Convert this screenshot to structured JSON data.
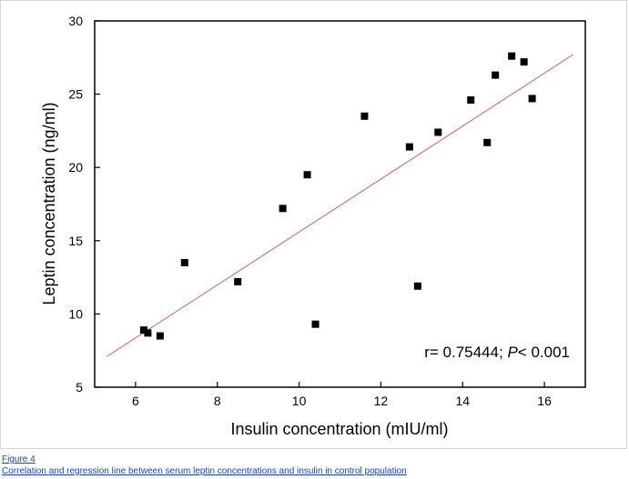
{
  "figure": {
    "label": "Figure 4",
    "caption": "Correlation and regression line between serum leptin concentrations and insulin in control population"
  },
  "chart_data": {
    "type": "scatter",
    "xlabel": "Insulin concentration (mIU/ml)",
    "ylabel": "Leptin concentration (ng/ml)",
    "xlim": [
      5,
      17
    ],
    "ylim": [
      5,
      30
    ],
    "xticks": [
      6,
      8,
      10,
      12,
      14,
      16
    ],
    "yticks": [
      5,
      10,
      15,
      20,
      25,
      30
    ],
    "grid": false,
    "legend": "none",
    "marker": "square",
    "marker_color": "#000000",
    "points": [
      {
        "x": 6.2,
        "y": 8.9
      },
      {
        "x": 6.3,
        "y": 8.7
      },
      {
        "x": 6.6,
        "y": 8.5
      },
      {
        "x": 7.2,
        "y": 13.5
      },
      {
        "x": 8.5,
        "y": 12.2
      },
      {
        "x": 9.6,
        "y": 17.2
      },
      {
        "x": 10.2,
        "y": 19.5
      },
      {
        "x": 10.4,
        "y": 9.3
      },
      {
        "x": 11.6,
        "y": 23.5
      },
      {
        "x": 12.7,
        "y": 21.4
      },
      {
        "x": 12.9,
        "y": 11.9
      },
      {
        "x": 13.4,
        "y": 22.4
      },
      {
        "x": 14.2,
        "y": 24.6
      },
      {
        "x": 14.6,
        "y": 21.7
      },
      {
        "x": 14.8,
        "y": 26.3
      },
      {
        "x": 15.2,
        "y": 27.6
      },
      {
        "x": 15.5,
        "y": 27.2
      },
      {
        "x": 15.7,
        "y": 24.7
      }
    ],
    "regression_line": {
      "color": "#d06060",
      "x": [
        5.3,
        16.7
      ],
      "y": [
        7.1,
        27.7
      ]
    },
    "annotation": {
      "text_prefix": "r= 0.75444; ",
      "italic": "P",
      "text_suffix": "< 0.001"
    }
  }
}
